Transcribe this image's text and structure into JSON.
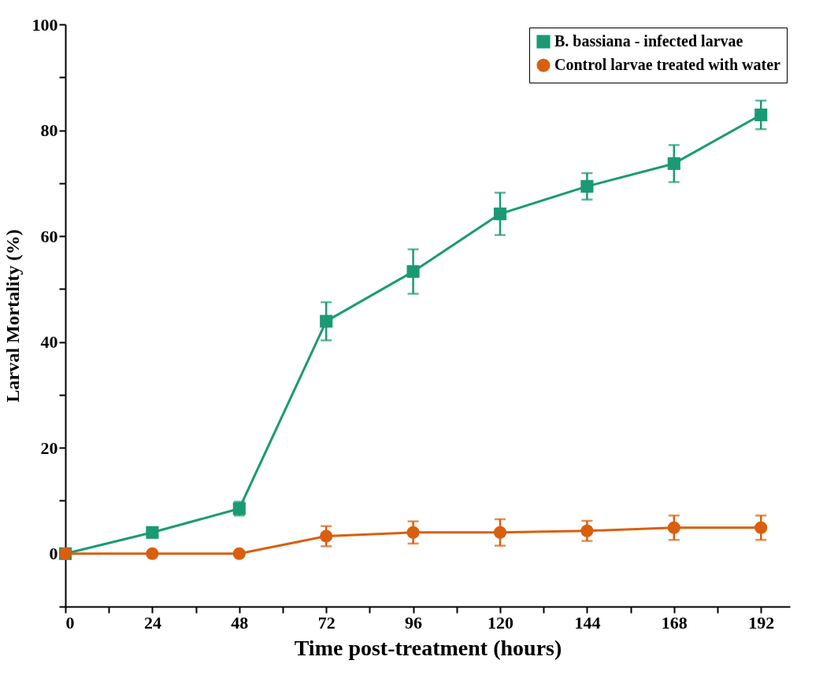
{
  "chart_data": {
    "type": "line",
    "xlabel": "Time post-treatment (hours)",
    "ylabel": "Larval Mortality (%)",
    "xlim": [
      0,
      200
    ],
    "ylim": [
      -10,
      100
    ],
    "xticks": [
      0,
      {
        "value": 12,
        "label": null
      },
      24,
      {
        "value": 36,
        "label": null
      },
      48,
      {
        "value": 60,
        "label": null
      },
      72,
      {
        "value": 84,
        "label": null
      },
      96,
      {
        "value": 108,
        "label": null
      },
      120,
      {
        "value": 132,
        "label": null
      },
      144,
      {
        "value": 156,
        "label": null
      },
      168,
      {
        "value": 180,
        "label": null
      },
      192
    ],
    "yticks": [
      {
        "value": -10,
        "label": null
      },
      0,
      {
        "value": 10,
        "label": null
      },
      20,
      {
        "value": 30,
        "label": null
      },
      40,
      {
        "value": 50,
        "label": null
      },
      60,
      {
        "value": 70,
        "label": null
      },
      80,
      {
        "value": 90,
        "label": null
      },
      100
    ],
    "x": [
      0,
      24,
      48,
      72,
      96,
      120,
      144,
      168,
      192
    ],
    "series": [
      {
        "name": "B. bassiana - infected larvae",
        "color": "#1a9a74",
        "marker": "square",
        "values": [
          0,
          4.0,
          8.5,
          43.9,
          53.3,
          64.2,
          69.4,
          73.7,
          82.9
        ],
        "errors": [
          null,
          0.6,
          1.3,
          3.6,
          4.2,
          4.0,
          2.5,
          3.5,
          2.7
        ]
      },
      {
        "name": "Control larvae treated with water",
        "color": "#d95f0e",
        "marker": "circle",
        "values": [
          0,
          0,
          0,
          3.3,
          4.0,
          4.0,
          4.3,
          4.9,
          4.9
        ],
        "errors": [
          null,
          null,
          null,
          1.9,
          2.1,
          2.5,
          1.9,
          2.3,
          2.3
        ]
      }
    ],
    "legend": "top right",
    "grid": false,
    "line_style": "solid"
  }
}
